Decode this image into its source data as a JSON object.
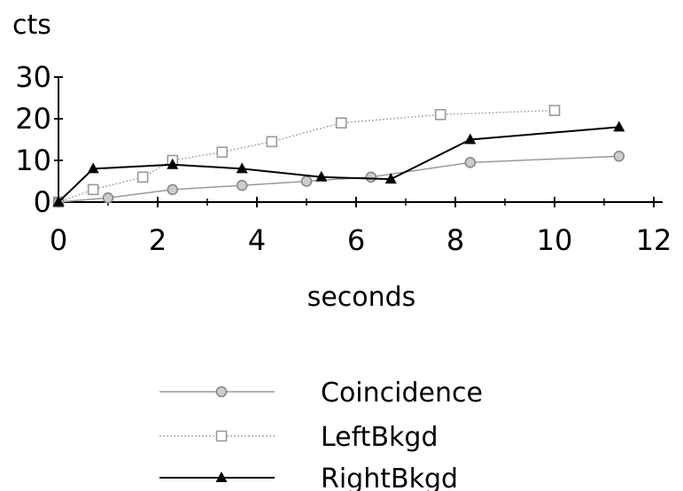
{
  "chart_data": {
    "type": "line",
    "title": "",
    "xlabel": "seconds",
    "ylabel": "cts",
    "xlim": [
      0,
      12
    ],
    "ylim": [
      0,
      30
    ],
    "x_ticks": [
      0,
      2,
      4,
      6,
      8,
      10,
      12
    ],
    "y_ticks": [
      0,
      10,
      20,
      30
    ],
    "grid": false,
    "legend_position": "bottom",
    "series": [
      {
        "name": "Coincidence",
        "marker": "circle",
        "color": "#888888",
        "line_color": "#999999",
        "x": [
          0,
          1.0,
          2.3,
          3.7,
          5.0,
          6.3,
          8.3,
          11.3
        ],
        "y": [
          0,
          1,
          3,
          4,
          5,
          6,
          9.5,
          11
        ]
      },
      {
        "name": "LeftBkgd",
        "marker": "square",
        "color": "#999999",
        "line_color": "#aaaaaa",
        "x": [
          0,
          0.7,
          1.7,
          2.3,
          3.3,
          4.3,
          5.7,
          7.7,
          10.0
        ],
        "y": [
          0,
          3,
          6,
          10,
          12,
          14.5,
          19,
          21,
          22
        ]
      },
      {
        "name": "RightBkgd",
        "marker": "triangle",
        "color": "#000000",
        "line_color": "#000000",
        "x": [
          0,
          0.7,
          2.3,
          3.7,
          5.3,
          6.7,
          8.3,
          11.3
        ],
        "y": [
          0,
          8,
          9,
          8,
          6,
          5.5,
          15,
          18
        ]
      }
    ]
  }
}
